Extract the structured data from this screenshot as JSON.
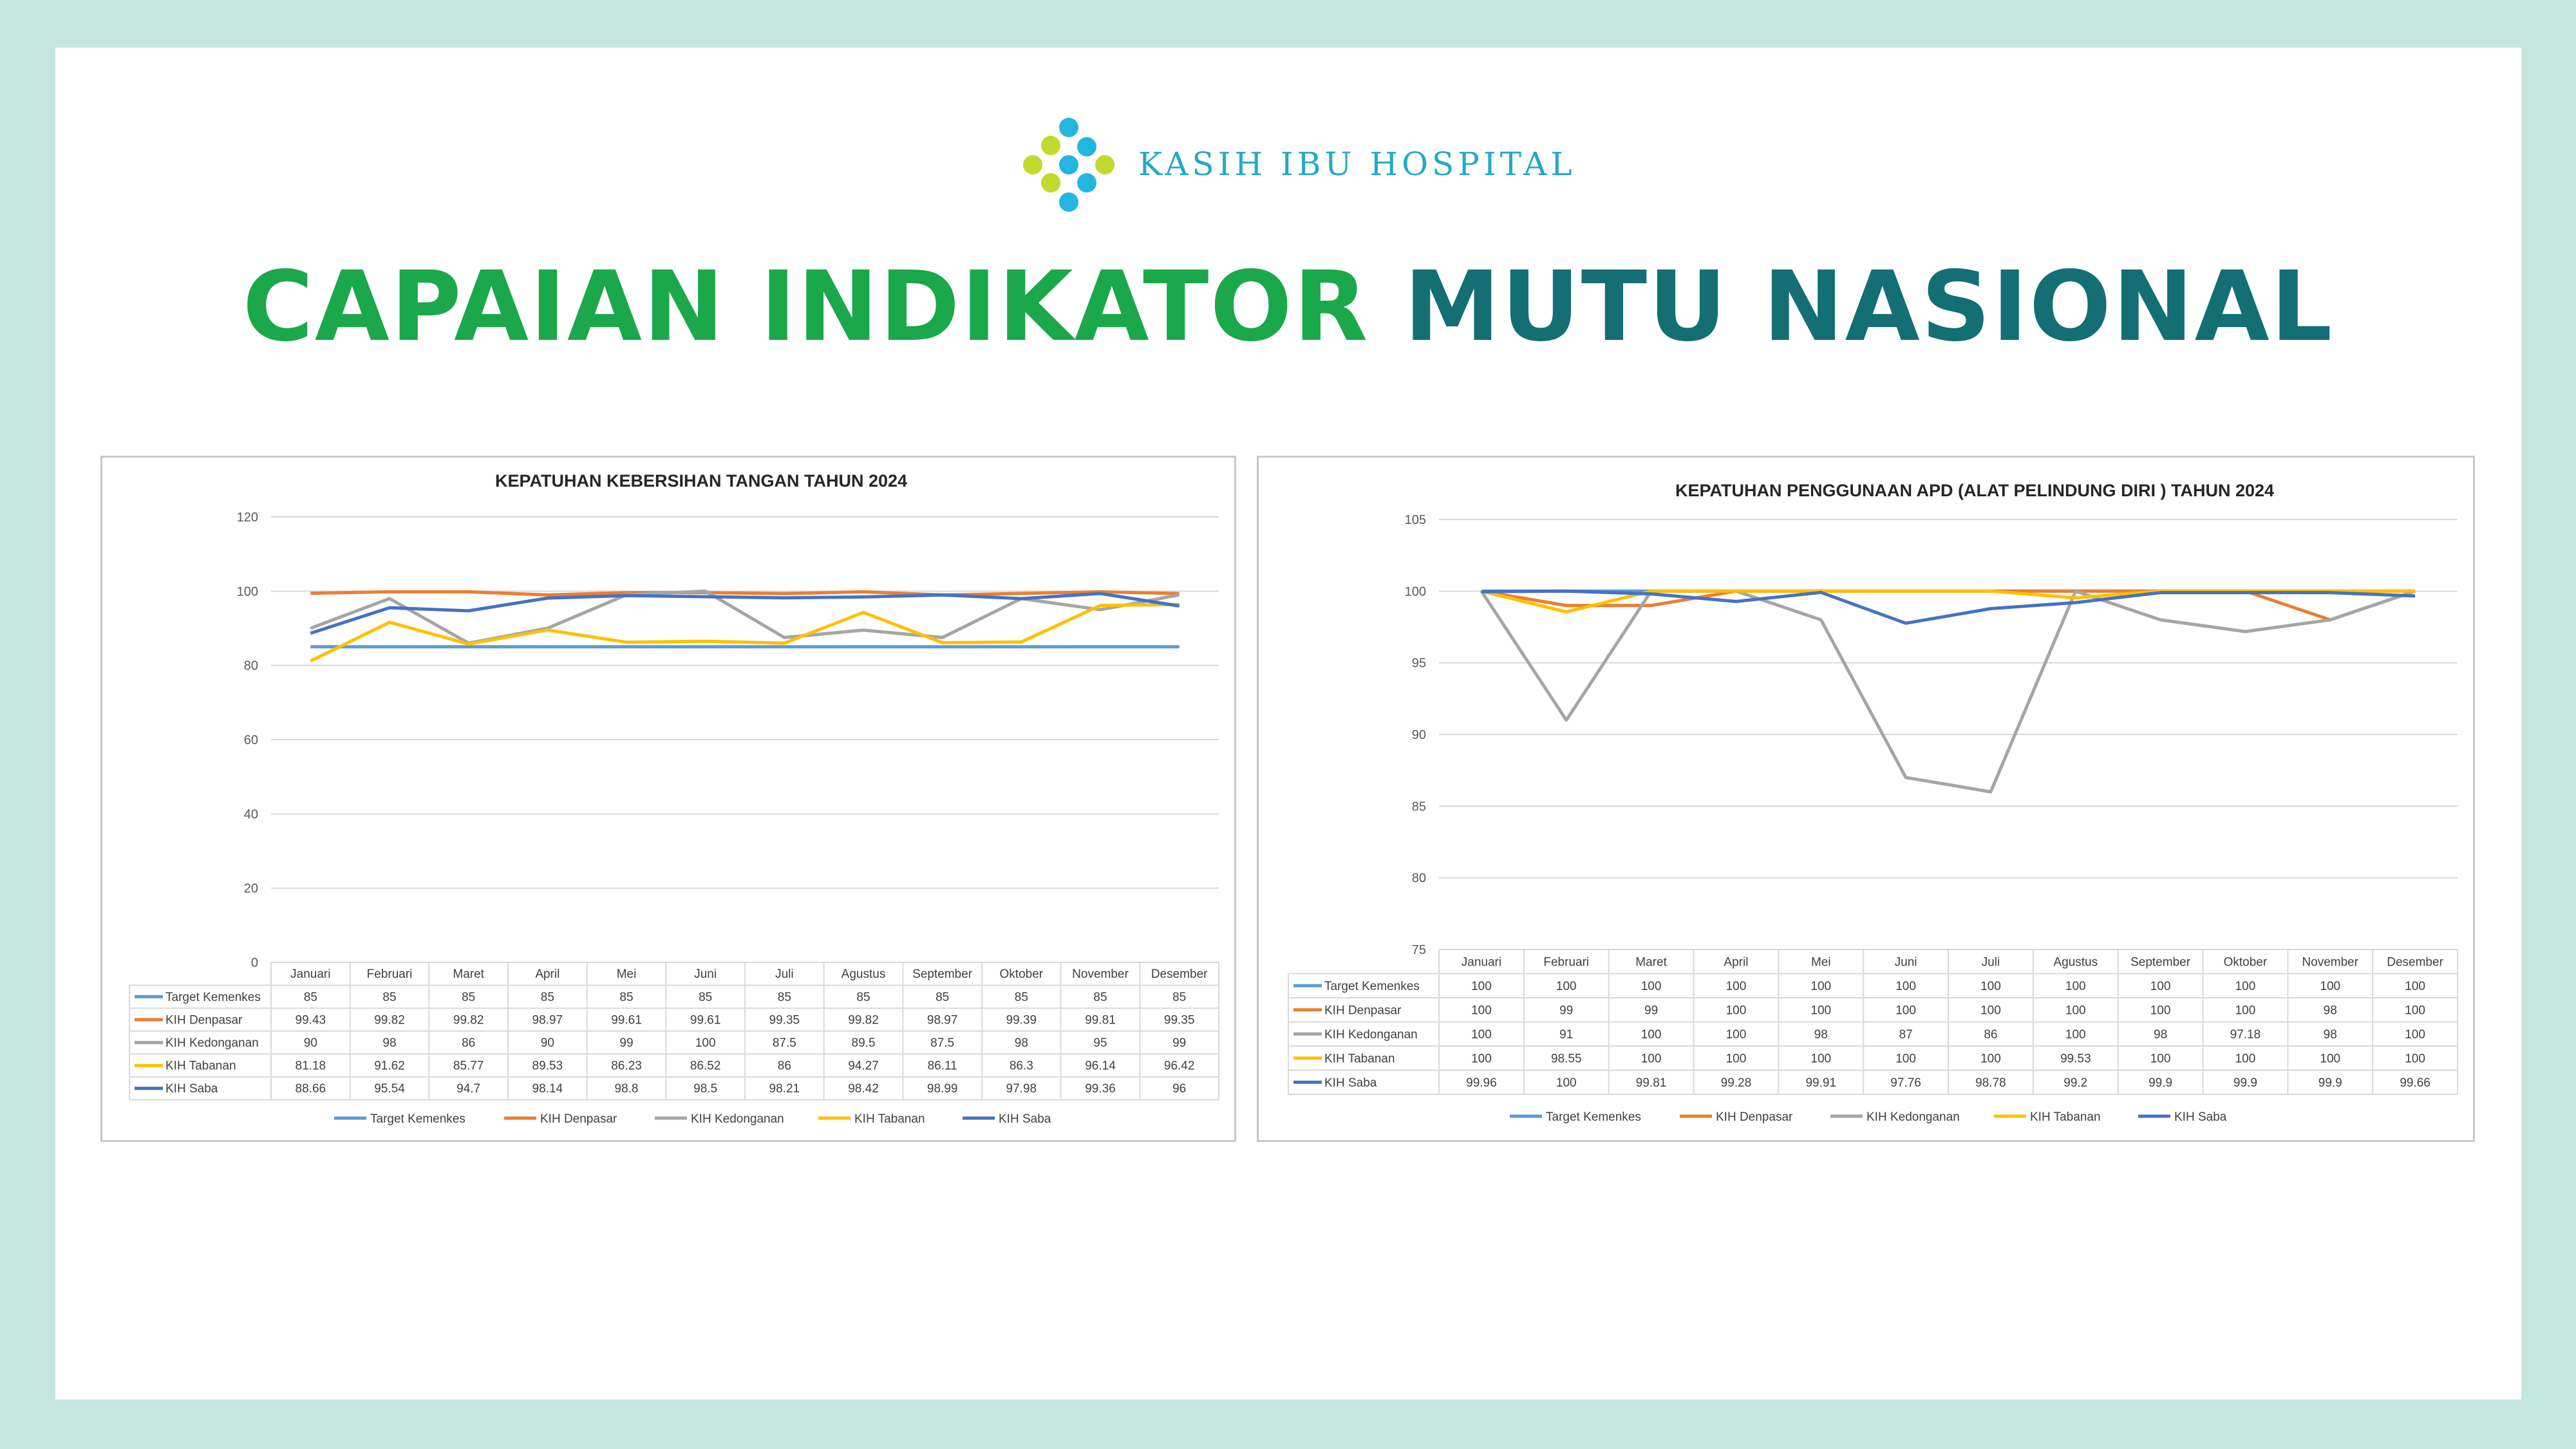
{
  "brand": {
    "name": "KASIH IBU HOSPITAL"
  },
  "page": {
    "title_part1": "CAPAIAN INDIKATOR",
    "title_part2": "MUTU NASIONAL"
  },
  "colors": {
    "background": "#c4e6de",
    "title_green": "#1aa84a",
    "title_teal": "#136f73",
    "logo_blue": "#22b6e0",
    "logo_lime": "#c2d92e"
  },
  "chart_data": [
    {
      "type": "line",
      "title": "KEPATUHAN KEBERSIHAN TANGAN TAHUN 2024",
      "categories": [
        "Januari",
        "Februari",
        "Maret",
        "April",
        "Mei",
        "Juni",
        "Juli",
        "Agustus",
        "September",
        "Oktober",
        "November",
        "Desember"
      ],
      "ylim": [
        0,
        120
      ],
      "yticks": [
        0,
        20,
        40,
        60,
        80,
        100,
        120
      ],
      "grid": true,
      "legend": "bottom",
      "data_table": true,
      "series": [
        {
          "name": "Target Kemenkes",
          "color": "#5b9bd5",
          "values": [
            85,
            85,
            85,
            85,
            85,
            85,
            85,
            85,
            85,
            85,
            85,
            85
          ]
        },
        {
          "name": "KIH Denpasar",
          "color": "#ed7d31",
          "values": [
            99.43,
            99.82,
            99.82,
            98.97,
            99.61,
            99.61,
            99.35,
            99.82,
            98.97,
            99.39,
            99.81,
            99.35
          ]
        },
        {
          "name": "KIH Kedonganan",
          "color": "#a5a5a5",
          "values": [
            90,
            98,
            86,
            90,
            99,
            100,
            87.5,
            89.5,
            87.5,
            98,
            95,
            99
          ]
        },
        {
          "name": "KIH Tabanan",
          "color": "#ffc000",
          "values": [
            81.18,
            91.62,
            85.77,
            89.53,
            86.23,
            86.52,
            86,
            94.27,
            86.11,
            86.3,
            96.14,
            96.42
          ]
        },
        {
          "name": "KIH Saba",
          "color": "#4472c4",
          "values": [
            88.66,
            95.54,
            94.7,
            98.14,
            98.8,
            98.5,
            98.21,
            98.42,
            98.99,
            97.98,
            99.36,
            96
          ]
        }
      ]
    },
    {
      "type": "line",
      "title": "KEPATUHAN PENGGUNAAN APD (ALAT PELINDUNG DIRI ) TAHUN 2024",
      "categories": [
        "Januari",
        "Februari",
        "Maret",
        "April",
        "Mei",
        "Juni",
        "Juli",
        "Agustus",
        "September",
        "Oktober",
        "November",
        "Desember"
      ],
      "ylim": [
        75,
        105
      ],
      "yticks": [
        75,
        80,
        85,
        90,
        95,
        100,
        105
      ],
      "grid": true,
      "legend": "bottom",
      "data_table": true,
      "series": [
        {
          "name": "Target Kemenkes",
          "color": "#5b9bd5",
          "values": [
            100,
            100,
            100,
            100,
            100,
            100,
            100,
            100,
            100,
            100,
            100,
            100
          ]
        },
        {
          "name": "KIH Denpasar",
          "color": "#ed7d31",
          "values": [
            100,
            99,
            99,
            100,
            100,
            100,
            100,
            100,
            100,
            100,
            98,
            100
          ]
        },
        {
          "name": "KIH Kedonganan",
          "color": "#a5a5a5",
          "values": [
            100,
            91,
            100,
            100,
            98,
            87,
            86,
            100,
            98,
            97.18,
            98,
            100
          ]
        },
        {
          "name": "KIH Tabanan",
          "color": "#ffc000",
          "values": [
            100,
            98.55,
            100,
            100,
            100,
            100,
            100,
            99.53,
            100,
            100,
            100,
            100
          ]
        },
        {
          "name": "KIH Saba",
          "color": "#4472c4",
          "values": [
            99.96,
            100,
            99.81,
            99.28,
            99.91,
            97.76,
            98.78,
            99.2,
            99.9,
            99.9,
            99.9,
            99.66
          ]
        }
      ]
    }
  ]
}
